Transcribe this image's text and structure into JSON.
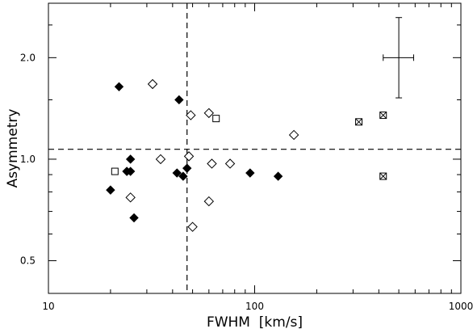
{
  "chart_data": {
    "type": "scatter",
    "xlabel": "FWHM  [km/s]",
    "ylabel": "Asymmetry",
    "xscale": "log",
    "yscale": "log",
    "xlim": [
      10,
      1000
    ],
    "ylim": [
      0.4,
      2.9
    ],
    "xticks": [
      {
        "value": 10,
        "label": "10"
      },
      {
        "value": 100,
        "label": "100"
      },
      {
        "value": 1000,
        "label": "1000"
      }
    ],
    "yticks": [
      {
        "value": 0.5,
        "label": "0.5"
      },
      {
        "value": 1.0,
        "label": "1.0"
      },
      {
        "value": 2.0,
        "label": "2.0"
      }
    ],
    "grid": false,
    "reference_lines": {
      "vertical_x": 47,
      "horizontal_y": 1.07
    },
    "error_bar": {
      "x": 500,
      "y": 2.0,
      "xerr": [
        420,
        590
      ],
      "yerr": [
        1.52,
        2.63
      ]
    },
    "series": [
      {
        "marker": "filled-diamond",
        "x": [
          22,
          43,
          24,
          25,
          25,
          24,
          42,
          45,
          47,
          20,
          26,
          95,
          130
        ],
        "y": [
          1.64,
          1.5,
          0.92,
          1.0,
          0.92,
          0.92,
          0.91,
          0.89,
          0.94,
          0.81,
          0.67,
          0.91,
          0.89
        ]
      },
      {
        "marker": "open-diamond",
        "x": [
          32,
          49,
          60,
          155,
          35,
          48,
          62,
          76,
          25,
          60,
          50
        ],
        "y": [
          1.67,
          1.35,
          1.37,
          1.18,
          1.0,
          1.02,
          0.97,
          0.97,
          0.77,
          0.75,
          0.63
        ]
      },
      {
        "marker": "open-square",
        "x": [
          65,
          21
        ],
        "y": [
          1.32,
          0.92
        ]
      },
      {
        "marker": "crossed-square",
        "x": [
          320,
          420,
          420
        ],
        "y": [
          1.29,
          1.35,
          0.89
        ]
      }
    ]
  }
}
